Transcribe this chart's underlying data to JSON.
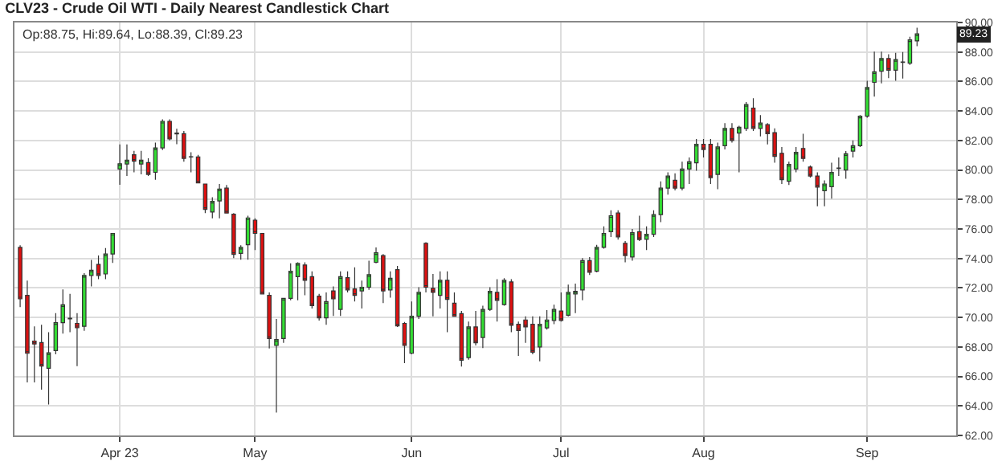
{
  "chart_data": {
    "type": "candlestick",
    "title": "CLV23 - Crude Oil WTI - Daily Nearest Candlestick Chart",
    "annotations": [
      "Op:88.75, Hi:89.64, Lo:88.39, Cl:89.23",
      "89.23"
    ],
    "categories": [
      null,
      null,
      null,
      null,
      null,
      null,
      null,
      null,
      null,
      null,
      null,
      null,
      null,
      null,
      "Apr 23",
      null,
      null,
      null,
      null,
      null,
      null,
      null,
      null,
      null,
      null,
      null,
      null,
      null,
      null,
      null,
      null,
      null,
      null,
      "May",
      null,
      null,
      null,
      null,
      null,
      null,
      null,
      null,
      null,
      null,
      null,
      null,
      null,
      null,
      null,
      null,
      null,
      null,
      null,
      null,
      null,
      "Jun",
      null,
      null,
      null,
      null,
      null,
      null,
      null,
      null,
      null,
      null,
      null,
      null,
      null,
      null,
      null,
      null,
      null,
      null,
      null,
      null,
      "Jul",
      null,
      null,
      null,
      null,
      null,
      null,
      null,
      null,
      null,
      null,
      null,
      null,
      null,
      null,
      null,
      null,
      null,
      null,
      null,
      "Aug",
      null,
      null,
      null,
      null,
      null,
      null,
      null,
      null,
      null,
      null,
      null,
      null,
      null,
      null,
      null,
      null,
      null,
      null,
      null,
      null,
      null,
      null,
      "Sep",
      null,
      null,
      null,
      null,
      null,
      null,
      null
    ],
    "ohlc": [
      [
        74.75,
        74.9,
        70.7,
        71.26
      ],
      [
        71.5,
        72.5,
        65.6,
        67.57
      ],
      [
        68.4,
        69.4,
        65.6,
        68.2
      ],
      [
        68.3,
        69.5,
        65.1,
        66.7
      ],
      [
        66.56,
        69.0,
        64.1,
        67.6
      ],
      [
        67.75,
        70.3,
        67.5,
        69.65
      ],
      [
        69.65,
        71.9,
        68.9,
        70.86
      ],
      [
        69.9,
        71.6,
        69.0,
        69.95
      ],
      [
        69.6,
        70.3,
        66.7,
        69.3
      ],
      [
        69.4,
        73.0,
        69.1,
        72.85
      ],
      [
        72.85,
        73.9,
        72.1,
        73.2
      ],
      [
        73.6,
        74.2,
        72.6,
        72.85
      ],
      [
        72.95,
        74.7,
        72.6,
        74.3
      ],
      [
        74.3,
        75.7,
        73.7,
        75.7
      ],
      [
        80.06,
        81.74,
        79.0,
        80.42
      ],
      [
        80.4,
        81.74,
        79.6,
        80.67
      ],
      [
        81.03,
        81.3,
        79.84,
        80.6
      ],
      [
        80.4,
        81.3,
        79.7,
        80.67
      ],
      [
        80.5,
        80.8,
        79.6,
        79.7
      ],
      [
        79.84,
        81.85,
        79.34,
        81.5
      ],
      [
        81.5,
        83.43,
        81.35,
        83.3
      ],
      [
        83.3,
        83.43,
        82.0,
        82.1
      ],
      [
        82.5,
        82.8,
        81.75,
        82.45
      ],
      [
        82.46,
        82.64,
        80.56,
        80.78
      ],
      [
        80.9,
        81.2,
        79.84,
        80.88
      ],
      [
        80.88,
        81.03,
        79.12,
        79.12
      ],
      [
        79.05,
        79.05,
        77.08,
        77.33
      ],
      [
        77.15,
        78.15,
        76.72,
        77.87
      ],
      [
        77.9,
        79.05,
        76.72,
        78.7
      ],
      [
        78.77,
        78.98,
        77.08,
        77.08
      ],
      [
        77.0,
        77.08,
        74.03,
        74.28
      ],
      [
        74.35,
        74.9,
        73.92,
        74.75
      ],
      [
        74.93,
        76.9,
        73.92,
        76.75
      ],
      [
        76.6,
        76.72,
        74.57,
        75.7
      ],
      [
        75.7,
        75.7,
        71.6,
        71.6
      ],
      [
        71.5,
        71.7,
        67.9,
        68.57
      ],
      [
        68.1,
        69.9,
        63.55,
        68.5
      ],
      [
        68.57,
        71.3,
        68.28,
        71.3
      ],
      [
        71.3,
        73.67,
        71.16,
        73.13
      ],
      [
        72.77,
        73.74,
        71.16,
        73.67
      ],
      [
        73.56,
        73.74,
        71.5,
        72.52
      ],
      [
        72.77,
        73.13,
        70.6,
        70.8
      ],
      [
        71.44,
        71.6,
        69.79,
        69.97
      ],
      [
        69.97,
        71.7,
        69.5,
        71.08
      ],
      [
        71.8,
        72.1,
        70.1,
        71.26
      ],
      [
        70.55,
        73.13,
        70.1,
        72.77
      ],
      [
        72.7,
        73.13,
        71.7,
        71.87
      ],
      [
        71.94,
        73.4,
        71.08,
        71.5
      ],
      [
        71.8,
        72.5,
        70.6,
        72.05
      ],
      [
        72.05,
        73.85,
        71.87,
        72.9
      ],
      [
        73.74,
        74.75,
        73.67,
        74.39
      ],
      [
        74.2,
        74.3,
        70.97,
        71.8
      ],
      [
        71.87,
        73.13,
        71.34,
        72.66
      ],
      [
        73.24,
        73.49,
        69.36,
        69.43
      ],
      [
        69.6,
        69.7,
        66.9,
        68.1
      ],
      [
        67.57,
        71.08,
        67.5,
        70.08
      ],
      [
        70.08,
        72.05,
        69.9,
        71.7
      ],
      [
        75.03,
        75.1,
        71.7,
        72.05
      ],
      [
        71.98,
        72.95,
        70.08,
        71.7
      ],
      [
        71.5,
        73.13,
        70.6,
        72.52
      ],
      [
        72.52,
        73.13,
        69.0,
        71.23
      ],
      [
        70.97,
        71.7,
        70.08,
        70.08
      ],
      [
        70.26,
        70.44,
        66.67,
        67.1
      ],
      [
        67.28,
        69.72,
        67.14,
        69.36
      ],
      [
        69.36,
        70.44,
        68.1,
        68.28
      ],
      [
        68.64,
        70.8,
        67.93,
        70.55
      ],
      [
        70.55,
        72.05,
        70.44,
        71.77
      ],
      [
        71.7,
        72.6,
        69.72,
        71.16
      ],
      [
        70.87,
        72.66,
        70.8,
        72.52
      ],
      [
        72.41,
        72.6,
        69.0,
        69.47
      ],
      [
        69.54,
        69.72,
        67.4,
        69.11
      ],
      [
        69.83,
        70.08,
        68.28,
        69.36
      ],
      [
        69.54,
        70.08,
        67.5,
        67.64
      ],
      [
        68.0,
        70.08,
        67.03,
        69.54
      ],
      [
        69.29,
        70.5,
        69.18,
        69.83
      ],
      [
        69.8,
        70.87,
        69.54,
        70.55
      ],
      [
        70.44,
        71.7,
        69.72,
        69.8
      ],
      [
        70.15,
        72.23,
        70.08,
        71.7
      ],
      [
        71.6,
        72.3,
        70.3,
        71.77
      ],
      [
        71.87,
        74.03,
        71.16,
        73.85
      ],
      [
        73.85,
        74.1,
        72.88,
        73.06
      ],
      [
        73.13,
        74.93,
        73.06,
        74.75
      ],
      [
        74.75,
        76.18,
        74.67,
        75.7
      ],
      [
        75.82,
        77.26,
        75.46,
        76.9
      ],
      [
        77.08,
        77.26,
        75.28,
        75.46
      ],
      [
        75.03,
        75.18,
        73.74,
        74.2
      ],
      [
        74.1,
        76.0,
        73.85,
        75.75
      ],
      [
        75.82,
        76.9,
        75.18,
        75.28
      ],
      [
        75.3,
        76.18,
        74.57,
        75.64
      ],
      [
        75.64,
        77.26,
        75.46,
        76.97
      ],
      [
        76.97,
        79.23,
        76.47,
        78.77
      ],
      [
        78.77,
        79.84,
        78.33,
        79.59
      ],
      [
        79.3,
        79.77,
        78.62,
        78.77
      ],
      [
        78.77,
        80.56,
        78.62,
        80.06
      ],
      [
        80.06,
        80.85,
        79.05,
        80.56
      ],
      [
        80.49,
        82.1,
        79.95,
        81.74
      ],
      [
        81.74,
        82.1,
        80.85,
        81.39
      ],
      [
        81.74,
        82.1,
        79.05,
        79.48
      ],
      [
        79.7,
        81.85,
        78.69,
        81.56
      ],
      [
        81.64,
        83.18,
        81.39,
        82.82
      ],
      [
        82.82,
        83.18,
        81.85,
        82.0
      ],
      [
        82.5,
        83.0,
        79.84,
        82.9
      ],
      [
        82.82,
        84.6,
        82.64,
        84.44
      ],
      [
        84.2,
        84.87,
        82.64,
        82.82
      ],
      [
        82.82,
        83.72,
        82.28,
        83.18
      ],
      [
        83.07,
        83.18,
        81.74,
        82.46
      ],
      [
        82.53,
        82.82,
        80.49,
        80.92
      ],
      [
        81.13,
        81.56,
        79.05,
        79.34
      ],
      [
        79.23,
        80.56,
        78.98,
        80.38
      ],
      [
        80.06,
        81.56,
        79.84,
        81.2
      ],
      [
        81.46,
        82.46,
        80.56,
        80.78
      ],
      [
        80.2,
        80.31,
        79.48,
        79.59
      ],
      [
        79.59,
        79.84,
        77.54,
        78.84
      ],
      [
        78.59,
        79.3,
        77.54,
        79.05
      ],
      [
        78.87,
        80.49,
        78.05,
        79.84
      ],
      [
        80.1,
        80.85,
        79.59,
        80.13
      ],
      [
        80.0,
        81.28,
        79.41,
        81.1
      ],
      [
        81.28,
        82.0,
        80.85,
        81.64
      ],
      [
        81.64,
        83.72,
        81.56,
        83.65
      ],
      [
        83.65,
        86.05,
        83.54,
        85.59
      ],
      [
        85.94,
        88.03,
        84.97,
        86.66
      ],
      [
        86.7,
        88.03,
        85.87,
        87.56
      ],
      [
        87.56,
        87.85,
        86.23,
        86.77
      ],
      [
        86.77,
        87.95,
        86.05,
        87.49
      ],
      [
        87.3,
        88.0,
        86.2,
        87.32
      ],
      [
        87.24,
        89.03,
        87.13,
        88.82
      ],
      [
        88.75,
        89.64,
        88.39,
        89.23
      ]
    ],
    "ylim": [
      62,
      90
    ],
    "yticks": [
      {
        "value": 62,
        "label": "62.00"
      },
      {
        "value": 64,
        "label": "64.00"
      },
      {
        "value": 66,
        "label": "66.00"
      },
      {
        "value": 68,
        "label": "68.00"
      },
      {
        "value": 70,
        "label": "70.00"
      },
      {
        "value": 72,
        "label": "72.00"
      },
      {
        "value": 74,
        "label": "74.00"
      },
      {
        "value": 76,
        "label": "76.00"
      },
      {
        "value": 78,
        "label": "78.00"
      },
      {
        "value": 80,
        "label": "80.00"
      },
      {
        "value": 82,
        "label": "82.00"
      },
      {
        "value": 84,
        "label": "84.00"
      },
      {
        "value": 86,
        "label": "86.00"
      },
      {
        "value": 88,
        "label": "88.00"
      },
      {
        "value": 90,
        "label": "90.00"
      }
    ],
    "grid": true
  }
}
